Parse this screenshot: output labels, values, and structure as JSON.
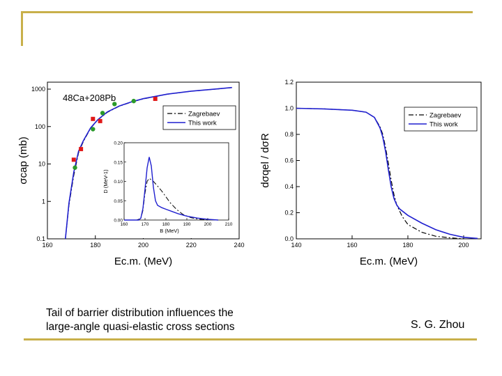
{
  "slide": {
    "caption_line1": "Tail of barrier distribution influences the",
    "caption_line2": "large-angle quasi-elastic cross sections",
    "author": "S. G. Zhou",
    "accent_color": "#c8b04a"
  },
  "chart_data": [
    {
      "type": "line",
      "reaction_label": "48Ca+208Pb",
      "xlabel": "Ec.m. (MeV)",
      "ylabel": "σcap (mb)",
      "xlim": [
        160,
        240
      ],
      "ylim": [
        0.1,
        1000
      ],
      "log_y": true,
      "xticks": [
        "160",
        "180",
        "200",
        "220",
        "240"
      ],
      "yticks": [
        "0.1",
        "1",
        "10",
        "100",
        "1000"
      ],
      "legend": [
        "Zagrebaev",
        "This work"
      ],
      "legend_position": "top-right",
      "series": [
        {
          "name": "Zagrebaev",
          "style": "dash-dot",
          "color": "#000000",
          "x": [
            167.5,
            169,
            171,
            173,
            175,
            178,
            181,
            185,
            190,
            195,
            200,
            210,
            220,
            230,
            237
          ],
          "y": [
            0.1,
            0.8,
            5,
            20,
            40,
            90,
            150,
            240,
            350,
            450,
            550,
            730,
            880,
            1000,
            1100
          ]
        },
        {
          "name": "This work",
          "style": "solid",
          "color": "#1f1fcf",
          "x": [
            167.5,
            169,
            171,
            173,
            175,
            178,
            181,
            185,
            190,
            195,
            200,
            210,
            220,
            230,
            237
          ],
          "y": [
            0.1,
            0.9,
            6,
            22,
            42,
            92,
            152,
            245,
            355,
            455,
            555,
            735,
            885,
            1005,
            1105
          ]
        }
      ],
      "points": [
        {
          "marker": "square",
          "color": "#e01818",
          "x": [
            171,
            174,
            179,
            182,
            205
          ],
          "y": [
            13,
            25,
            160,
            140,
            550
          ]
        },
        {
          "marker": "circle",
          "color": "#2a9a2a",
          "x": [
            171.5,
            179,
            183,
            188,
            196
          ],
          "y": [
            8,
            85,
            230,
            400,
            480
          ]
        }
      ],
      "inset": {
        "type": "line",
        "xlabel": "B (MeV)",
        "ylabel": "D (MeV-1)",
        "xlim": [
          160,
          210
        ],
        "ylim": [
          0,
          0.2
        ],
        "xticks": [
          "160",
          "170",
          "180",
          "190",
          "200",
          "210"
        ],
        "yticks": [
          "0.00",
          "0.05",
          "0.10",
          "0.15",
          "0.20"
        ],
        "series": [
          {
            "name": "Zagrebaev",
            "style": "dash-dot",
            "color": "#000000",
            "x": [
              160,
              166,
              168,
              169,
              170,
              171,
              172,
              174,
              176,
              178,
              180,
              182,
              185,
              188,
              192,
              196,
              200
            ],
            "y": [
              0,
              0,
              0.004,
              0.025,
              0.07,
              0.1,
              0.108,
              0.1,
              0.088,
              0.075,
              0.06,
              0.045,
              0.028,
              0.015,
              0.006,
              0.002,
              0
            ]
          },
          {
            "name": "This work",
            "style": "solid",
            "color": "#1f1fcf",
            "x": [
              160,
              167,
              168,
              169,
              170,
              171,
              172,
              173,
              174,
              175,
              176,
              178,
              180,
              183,
              186,
              190,
              195,
              200,
              205
            ],
            "y": [
              0,
              0,
              0.005,
              0.03,
              0.08,
              0.135,
              0.163,
              0.14,
              0.085,
              0.05,
              0.038,
              0.032,
              0.028,
              0.022,
              0.016,
              0.01,
              0.005,
              0.002,
              0
            ]
          }
        ]
      }
    },
    {
      "type": "line",
      "xlabel": "Ec.m. (MeV)",
      "ylabel": "dσqel / dσR",
      "xlim": [
        140,
        210
      ],
      "ylim": [
        0,
        1.2
      ],
      "xticks": [
        "140",
        "160",
        "180",
        "200"
      ],
      "yticks": [
        "0.0",
        "0.2",
        "0.4",
        "0.6",
        "0.8",
        "1.0",
        "1.2"
      ],
      "legend": [
        "Zagrebaev",
        "This work"
      ],
      "legend_position": "top-right",
      "series": [
        {
          "name": "Zagrebaev",
          "style": "dash-dot",
          "color": "#000000",
          "x": [
            140,
            150,
            160,
            165,
            168,
            170,
            171,
            172,
            173,
            174,
            175,
            176,
            178,
            180,
            185,
            190,
            195,
            200
          ],
          "y": [
            1.0,
            0.995,
            0.985,
            0.97,
            0.93,
            0.86,
            0.8,
            0.7,
            0.58,
            0.45,
            0.34,
            0.26,
            0.17,
            0.11,
            0.05,
            0.02,
            0.008,
            0
          ]
        },
        {
          "name": "This work",
          "style": "solid",
          "color": "#1f1fcf",
          "x": [
            140,
            150,
            160,
            165,
            168,
            170,
            171,
            172,
            173,
            174,
            175,
            176,
            177,
            180,
            185,
            190,
            195,
            200,
            205,
            210
          ],
          "y": [
            1.0,
            0.995,
            0.985,
            0.97,
            0.93,
            0.85,
            0.78,
            0.67,
            0.53,
            0.4,
            0.31,
            0.26,
            0.23,
            0.18,
            0.12,
            0.07,
            0.035,
            0.012,
            0.003,
            0
          ]
        }
      ]
    }
  ]
}
